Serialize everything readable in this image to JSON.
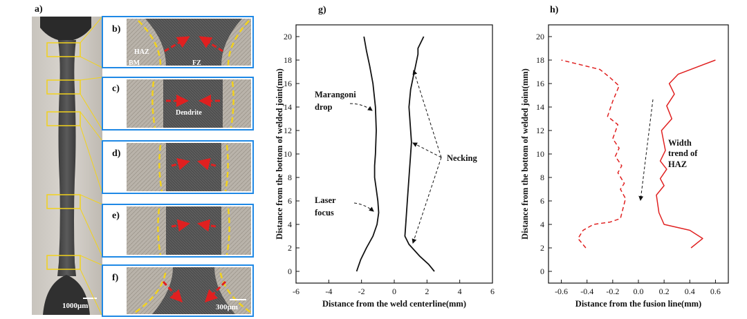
{
  "panel_labels": {
    "a": "a)",
    "b": "b)",
    "c": "c)",
    "d": "d)",
    "e": "e)",
    "f": "f)",
    "g": "g)",
    "h": "h)"
  },
  "micro": {
    "scale_a": "1000μm",
    "scale_f": "300μm",
    "haz": "HAZ",
    "bm": "BM",
    "fz": "FZ",
    "dendrite": "Dendrite"
  },
  "colors": {
    "accent_blue": "#1e88e5",
    "yellow": "#f2d21c",
    "red": "#e02020"
  },
  "chart_data": [
    {
      "id": "g",
      "type": "line",
      "xlabel": "Distance from the weld centerline(mm)",
      "ylabel": "Distance from the bottom of welded joint(mm)",
      "xlim": [
        -6,
        6
      ],
      "ylim": [
        -1,
        21
      ],
      "xticks": [
        -6,
        -4,
        -2,
        0,
        2,
        4,
        6
      ],
      "yticks": [
        0,
        2,
        4,
        6,
        8,
        10,
        12,
        14,
        16,
        18,
        20
      ],
      "grid": false,
      "series": [
        {
          "side": "left",
          "x": [
            -2.3,
            -2.05,
            -1.7,
            -1.3,
            -1.05,
            -0.95,
            -1.0,
            -1.1,
            -1.2,
            -1.2,
            -1.15,
            -1.1,
            -1.15,
            -1.3,
            -1.5,
            -1.7,
            -1.85
          ],
          "y": [
            0,
            1.0,
            2.0,
            3.0,
            4.0,
            5.0,
            6.0,
            7.0,
            8.0,
            9.0,
            10.0,
            12.0,
            14.0,
            16.0,
            17.5,
            18.8,
            20.0
          ]
        },
        {
          "side": "right",
          "x": [
            2.45,
            2.1,
            1.55,
            0.9,
            0.65,
            0.7,
            0.8,
            0.9,
            1.0,
            1.05,
            1.0,
            0.9,
            1.0,
            1.15,
            1.3,
            1.45,
            1.45,
            1.8
          ],
          "y": [
            0,
            0.6,
            1.3,
            2.3,
            3.0,
            4.0,
            6.0,
            8.0,
            10.0,
            11.0,
            12.0,
            14.0,
            15.5,
            16.5,
            17.5,
            18.5,
            19.0,
            20.0
          ]
        }
      ],
      "annotations": [
        {
          "text": [
            "Marangoni",
            "drop"
          ]
        },
        {
          "text": [
            "Laser",
            "focus"
          ]
        },
        {
          "text": [
            "Necking"
          ]
        }
      ]
    },
    {
      "id": "h",
      "type": "line",
      "xlabel": "Distance from the fusion line(mm)",
      "ylabel": "Distance from the bottom of welded joint(mm)",
      "xlim": [
        -0.7,
        0.7
      ],
      "ylim": [
        -1,
        21
      ],
      "xticks": [
        -0.6,
        -0.4,
        -0.2,
        0.0,
        0.2,
        0.4,
        0.6
      ],
      "yticks": [
        0,
        2,
        4,
        6,
        8,
        10,
        12,
        14,
        16,
        18,
        20
      ],
      "grid": false,
      "series": [
        {
          "style": "dashed",
          "x": [
            -0.41,
            -0.47,
            -0.43,
            -0.35,
            -0.22,
            -0.14,
            -0.1,
            -0.14,
            -0.11,
            -0.16,
            -0.13,
            -0.18,
            -0.15,
            -0.2,
            -0.16,
            -0.24,
            -0.2,
            -0.15,
            -0.22,
            -0.3,
            -0.6
          ],
          "y": [
            2,
            2.8,
            3.5,
            4.0,
            4.2,
            4.5,
            6.2,
            7.0,
            7.5,
            8.4,
            9.0,
            9.8,
            10.5,
            11.3,
            12.5,
            13.2,
            14.5,
            15.8,
            16.5,
            17.2,
            18.0
          ]
        },
        {
          "style": "solid",
          "x": [
            0.41,
            0.5,
            0.4,
            0.2,
            0.16,
            0.14,
            0.2,
            0.17,
            0.22,
            0.17,
            0.21,
            0.18,
            0.26,
            0.22,
            0.28,
            0.24,
            0.31,
            0.6
          ],
          "y": [
            2,
            2.8,
            3.5,
            4.0,
            5.0,
            6.5,
            7.3,
            7.9,
            8.7,
            9.4,
            10.3,
            12.0,
            13.0,
            14.1,
            15.1,
            16.0,
            16.8,
            18.0
          ]
        }
      ],
      "annotations": [
        {
          "text": [
            "Width",
            "trend of",
            "HAZ"
          ]
        }
      ]
    }
  ]
}
